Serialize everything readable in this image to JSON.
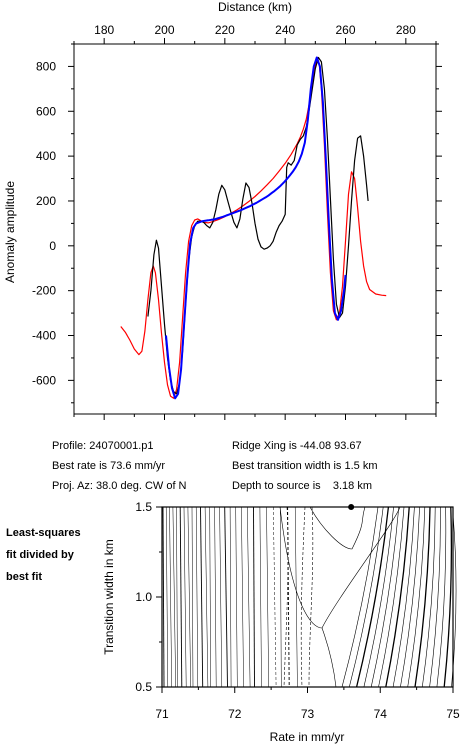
{
  "chart_data": [
    {
      "type": "line",
      "x_axis_label": "Distance (km)",
      "y_axis_label": "Anomaly amplitude",
      "xlim": [
        170,
        290
      ],
      "ylim": [
        -750,
        900
      ],
      "x_ticks": [
        180,
        200,
        220,
        240,
        260,
        280
      ],
      "y_ticks": [
        -600,
        -400,
        -200,
        0,
        200,
        400,
        600,
        800
      ],
      "series": [
        {
          "color": "#000000",
          "points": [
            [
              194.5,
              -315
            ],
            [
              195.5,
              -200
            ],
            [
              196.5,
              -40
            ],
            [
              197.3,
              25
            ],
            [
              198.0,
              -10
            ],
            [
              199.0,
              -180
            ],
            [
              200.0,
              -350
            ],
            [
              201.0,
              -500
            ],
            [
              202.0,
              -600
            ],
            [
              203.0,
              -650
            ],
            [
              204.0,
              -660
            ],
            [
              205.0,
              -610
            ],
            [
              206.0,
              -470
            ],
            [
              207.0,
              -260
            ],
            [
              208.0,
              -70
            ],
            [
              209.0,
              40
            ],
            [
              210.0,
              90
            ],
            [
              211.0,
              110
            ],
            [
              212.0,
              110
            ],
            [
              213.0,
              105
            ],
            [
              214.0,
              90
            ],
            [
              215.0,
              80
            ],
            [
              216.0,
              105
            ],
            [
              217.0,
              160
            ],
            [
              218.0,
              230
            ],
            [
              219.0,
              270
            ],
            [
              220.0,
              250
            ],
            [
              221.0,
              200
            ],
            [
              222.0,
              150
            ],
            [
              223.0,
              105
            ],
            [
              224.0,
              80
            ],
            [
              225.0,
              120
            ],
            [
              226.0,
              210
            ],
            [
              227.0,
              280
            ],
            [
              228.0,
              260
            ],
            [
              229.0,
              190
            ],
            [
              230.0,
              100
            ],
            [
              231.0,
              30
            ],
            [
              232.0,
              -5
            ],
            [
              233.0,
              -15
            ],
            [
              234.0,
              -10
            ],
            [
              235.0,
              0
            ],
            [
              236.0,
              20
            ],
            [
              237.0,
              60
            ],
            [
              238.0,
              90
            ],
            [
              239.0,
              110
            ],
            [
              240.0,
              140
            ],
            [
              240.5,
              350
            ],
            [
              241.0,
              370
            ],
            [
              242.0,
              360
            ],
            [
              243.0,
              380
            ],
            [
              244.0,
              450
            ],
            [
              245.0,
              475
            ],
            [
              246.0,
              490
            ],
            [
              247.0,
              530
            ],
            [
              248.0,
              610
            ],
            [
              249.0,
              700
            ],
            [
              250.0,
              790
            ],
            [
              251.0,
              840
            ],
            [
              252.0,
              820
            ],
            [
              253.0,
              700
            ],
            [
              254.0,
              480
            ],
            [
              255.0,
              210
            ],
            [
              256.0,
              -60
            ],
            [
              257.0,
              -260
            ],
            [
              258.0,
              -320
            ],
            [
              259.0,
              -300
            ],
            [
              260.0,
              -180
            ],
            [
              261.0,
              0
            ],
            [
              262.0,
              200
            ],
            [
              263.0,
              380
            ],
            [
              264.0,
              480
            ],
            [
              265.0,
              490
            ],
            [
              266.0,
              400
            ],
            [
              267.0,
              270
            ],
            [
              267.5,
              200
            ]
          ]
        },
        {
          "color": "#0000ff",
          "points": [
            [
              200.5,
              -400
            ],
            [
              201.5,
              -540
            ],
            [
              202.5,
              -635
            ],
            [
              203.5,
              -680
            ],
            [
              204.5,
              -660
            ],
            [
              205.5,
              -550
            ],
            [
              206.5,
              -350
            ],
            [
              207.5,
              -150
            ],
            [
              208.5,
              10
            ],
            [
              209.5,
              80
            ],
            [
              210.5,
              100
            ],
            [
              211.5,
              105
            ],
            [
              212.5,
              110
            ],
            [
              213.5,
              112
            ],
            [
              214.5,
              114
            ],
            [
              215.5,
              116
            ],
            [
              216.5,
              118
            ],
            [
              217.5,
              122
            ],
            [
              218.5,
              126
            ],
            [
              219.5,
              130
            ],
            [
              220.5,
              135
            ],
            [
              221.5,
              140
            ],
            [
              222.5,
              145
            ],
            [
              223.5,
              150
            ],
            [
              224.5,
              155
            ],
            [
              225.5,
              160
            ],
            [
              226.5,
              166
            ],
            [
              227.5,
              172
            ],
            [
              228.5,
              178
            ],
            [
              229.5,
              185
            ],
            [
              230.5,
              192
            ],
            [
              231.5,
              200
            ],
            [
              232.5,
              208
            ],
            [
              233.5,
              216
            ],
            [
              234.5,
              225
            ],
            [
              235.5,
              235
            ],
            [
              236.5,
              245
            ],
            [
              237.5,
              256
            ],
            [
              238.5,
              268
            ],
            [
              239.5,
              282
            ],
            [
              240.5,
              297
            ],
            [
              241.5,
              313
            ],
            [
              242.5,
              330
            ],
            [
              243.5,
              350
            ],
            [
              244.5,
              375
            ],
            [
              245.5,
              410
            ],
            [
              246.5,
              460
            ],
            [
              247.5,
              560
            ],
            [
              248.5,
              700
            ],
            [
              249.5,
              800
            ],
            [
              250.5,
              840
            ],
            [
              251.5,
              800
            ],
            [
              252.5,
              640
            ],
            [
              253.5,
              380
            ],
            [
              254.5,
              100
            ],
            [
              255.5,
              -150
            ],
            [
              256.5,
              -300
            ],
            [
              257.5,
              -330
            ],
            [
              258.5,
              -290
            ],
            [
              259.5,
              -200
            ],
            [
              260.0,
              -130
            ]
          ]
        },
        {
          "color": "#ff0000",
          "points": [
            [
              185.5,
              -360
            ],
            [
              187.0,
              -385
            ],
            [
              188.5,
              -420
            ],
            [
              190.0,
              -460
            ],
            [
              191.5,
              -485
            ],
            [
              192.5,
              -470
            ],
            [
              193.5,
              -380
            ],
            [
              194.5,
              -240
            ],
            [
              195.5,
              -120
            ],
            [
              196.3,
              -90
            ],
            [
              197.0,
              -120
            ],
            [
              198.0,
              -240
            ],
            [
              199.0,
              -390
            ],
            [
              200.0,
              -520
            ],
            [
              201.0,
              -620
            ],
            [
              202.0,
              -670
            ],
            [
              203.0,
              -680
            ],
            [
              204.0,
              -640
            ],
            [
              205.0,
              -520
            ],
            [
              206.0,
              -320
            ],
            [
              207.0,
              -120
            ],
            [
              208.0,
              20
            ],
            [
              209.0,
              90
            ],
            [
              210.0,
              115
            ],
            [
              211.0,
              120
            ],
            [
              212.0,
              112
            ],
            [
              213.0,
              105
            ],
            [
              214.5,
              102
            ],
            [
              216.0,
              108
            ],
            [
              218.0,
              118
            ],
            [
              220.0,
              130
            ],
            [
              222.0,
              145
            ],
            [
              224.0,
              160
            ],
            [
              226.0,
              178
            ],
            [
              228.0,
              198
            ],
            [
              230.0,
              220
            ],
            [
              232.0,
              245
            ],
            [
              234.0,
              272
            ],
            [
              236.0,
              300
            ],
            [
              238.0,
              333
            ],
            [
              240.0,
              368
            ],
            [
              242.0,
              408
            ],
            [
              244.0,
              455
            ],
            [
              245.0,
              485
            ],
            [
              246.0,
              520
            ],
            [
              247.0,
              565
            ],
            [
              248.0,
              635
            ],
            [
              249.0,
              720
            ],
            [
              250.0,
              800
            ],
            [
              250.7,
              840
            ],
            [
              251.3,
              810
            ],
            [
              252.0,
              700
            ],
            [
              253.0,
              450
            ],
            [
              254.0,
              150
            ],
            [
              255.0,
              -120
            ],
            [
              256.0,
              -290
            ],
            [
              257.0,
              -330
            ],
            [
              258.0,
              -300
            ],
            [
              259.0,
              -180
            ],
            [
              260.0,
              20
            ],
            [
              261.0,
              230
            ],
            [
              262.0,
              330
            ],
            [
              263.0,
              300
            ],
            [
              264.0,
              170
            ],
            [
              265.0,
              20
            ],
            [
              266.0,
              -90
            ],
            [
              267.0,
              -160
            ],
            [
              268.0,
              -195
            ],
            [
              270.0,
              -215
            ],
            [
              272.0,
              -220
            ],
            [
              273.5,
              -222
            ]
          ]
        }
      ]
    },
    {
      "type": "contour",
      "x_axis_label": "Rate in mm/yr",
      "y_axis_label": "Transition width in km",
      "xlim": [
        71,
        75
      ],
      "ylim": [
        0.5,
        1.5
      ],
      "x_ticks": [
        "71",
        "72",
        "73",
        "74",
        "75"
      ],
      "y_ticks": [
        "0.5",
        "1.0",
        "1.5"
      ],
      "best_fit_point": [
        73.6,
        1.5
      ]
    }
  ],
  "info": {
    "profile": "Profile: 24070001.p1",
    "best_rate": "Best rate is 73.6 mm/yr",
    "proj_az": "Proj. Az: 38.0 deg. CW of N",
    "ridge_xing": "Ridge Xing is -44.08 93.67",
    "best_transition": "Best transition width is 1.5 km",
    "depth": "Depth to source is    3.18 km"
  },
  "side_note": [
    "Least-squares",
    "fit divided by",
    "best fit"
  ]
}
